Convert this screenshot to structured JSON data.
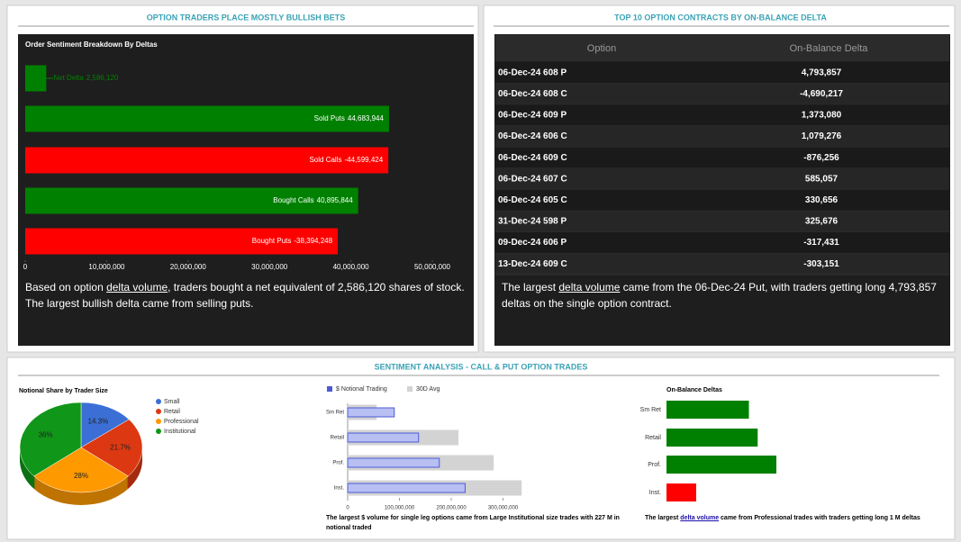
{
  "panels": {
    "left_title": "OPTION TRADERS PLACE MOSTLY BULLISH BETS",
    "right_title": "TOP 10 OPTION CONTRACTS BY ON-BALANCE DELTA",
    "bottom_title": "SENTIMENT ANALYSIS - CALL & PUT OPTION TRADES"
  },
  "summaries": {
    "left": {
      "before": "Based on option ",
      "link": "delta volume",
      "after": ", traders bought a net equivalent of 2,586,120 shares of stock. The largest bullish delta came from selling puts."
    },
    "right": {
      "before": "The largest ",
      "link": "delta volume",
      "after": " came from the 06-Dec-24 Put, with traders getting long 4,793,857 deltas on the single option contract."
    },
    "volume": "The largest $ volume for single leg options came from Large Institutional size trades with 227 M in notional traded",
    "delta": {
      "before": "The largest ",
      "link": "delta volume",
      "after": " came from Professional trades with traders getting long 1 M deltas"
    }
  },
  "table": {
    "header": [
      "Option",
      "On-Balance Delta"
    ],
    "rows": [
      [
        "06-Dec-24 608 P",
        "4,793,857"
      ],
      [
        "06-Dec-24 608 C",
        "-4,690,217"
      ],
      [
        "06-Dec-24 609 P",
        "1,373,080"
      ],
      [
        "06-Dec-24 606 C",
        "1,079,276"
      ],
      [
        "06-Dec-24 609 C",
        "-876,256"
      ],
      [
        "06-Dec-24 607 C",
        "585,057"
      ],
      [
        "06-Dec-24 605 C",
        "330,656"
      ],
      [
        "31-Dec-24 598 P",
        "325,676"
      ],
      [
        "09-Dec-24 606 P",
        "-317,431"
      ],
      [
        "13-Dec-24 609 C",
        "-303,151"
      ]
    ]
  },
  "chart_data": [
    {
      "type": "hbar",
      "title": "Order Sentiment Breakdown By Deltas",
      "categories": [
        "Net Delta",
        "Sold Puts",
        "Sold Calls",
        "Bought Calls",
        "Bought Puts"
      ],
      "values": [
        2586120,
        44683944,
        -44599424,
        40895844,
        -38394248
      ],
      "value_labels": [
        "2,586,120",
        "44,683,944",
        "-44,599,424",
        "40,895,844",
        "-38,394,248"
      ],
      "colors": {
        "positive": "#008000",
        "negative": "#ff0000"
      },
      "xlim": [
        0,
        50000000
      ],
      "xticks": [
        0,
        {
          "value": 10000000,
          "label": "10,000,000"
        },
        {
          "value": 20000000,
          "label": "20,000,000"
        },
        {
          "value": 30000000,
          "label": "30,000,000"
        },
        {
          "value": 40000000,
          "label": "40,000,000"
        },
        {
          "value": 50000000,
          "label": "50,000,000"
        }
      ]
    },
    {
      "type": "pie",
      "title": "Notional Share by Trader Size",
      "categories": [
        "Small",
        "Retail",
        "Professional",
        "Institutional"
      ],
      "values": [
        14.3,
        21.7,
        28,
        36
      ],
      "value_labels": [
        "14.3%",
        "21.7%",
        "28%",
        "36%"
      ],
      "colors": [
        "#3b6fd6",
        "#dc3912",
        "#ff9900",
        "#109618"
      ]
    },
    {
      "type": "grouped-hbar",
      "categories": [
        "Sm Ret",
        "Retail",
        "Prof.",
        "Inst."
      ],
      "series": [
        {
          "name": "$ Notional Trading",
          "color": "#4b5bd6",
          "values": [
            90000000,
            137000000,
            177000000,
            227000000
          ]
        },
        {
          "name": "30D Avg",
          "color": "#d3d3d3",
          "values": [
            56000000,
            214000000,
            282000000,
            336000000
          ]
        }
      ],
      "xlim": [
        0,
        340000000
      ],
      "xticks": [
        0,
        {
          "value": 100000000,
          "label": "100,000,000"
        },
        {
          "value": 200000000,
          "label": "200,000,000"
        },
        {
          "value": 300000000,
          "label": "300,000,000"
        }
      ]
    },
    {
      "type": "hbar",
      "title": "On-Balance Deltas",
      "categories": [
        "Sm Ret",
        "Retail",
        "Prof.",
        "Inst."
      ],
      "values": [
        750000,
        830000,
        1000000,
        -270000
      ],
      "colors": {
        "positive": "#008000",
        "negative": "#ff0000"
      }
    }
  ]
}
